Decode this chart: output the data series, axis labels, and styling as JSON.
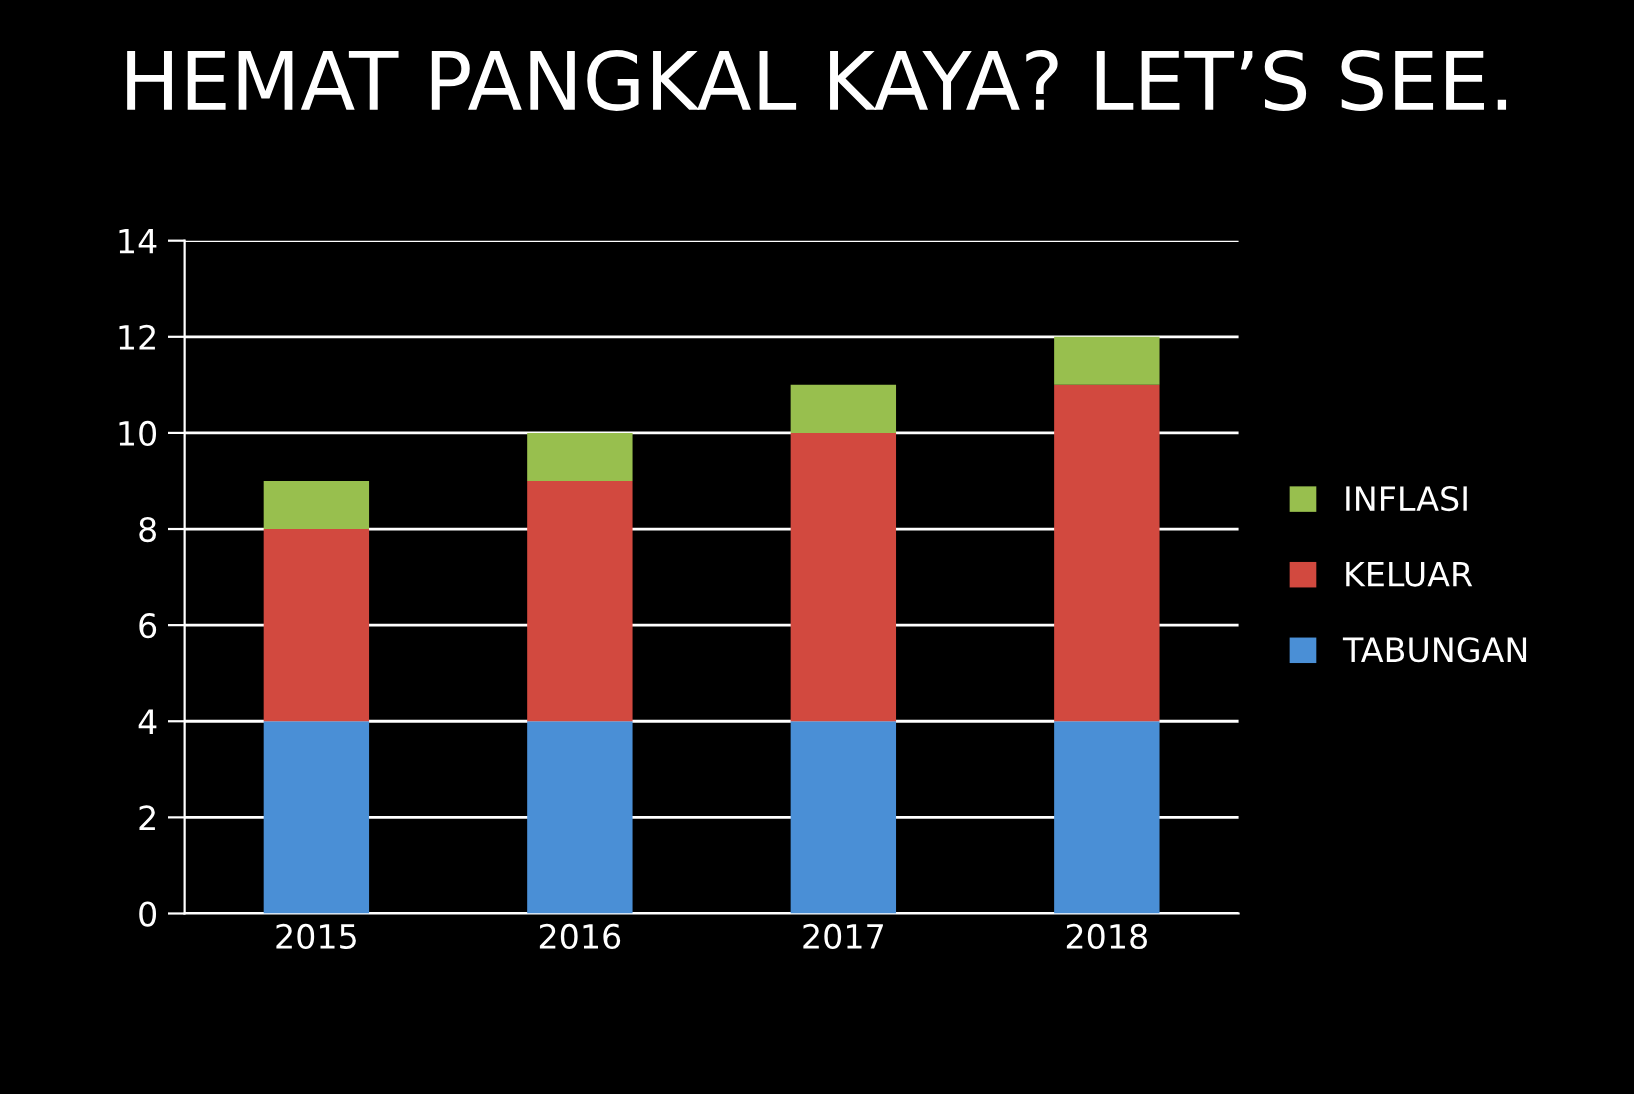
{
  "chart_data": {
    "type": "bar",
    "title": "HEMAT PANGKAL KAYA? LET’S SEE.",
    "stacked": true,
    "categories": [
      "2015",
      "2016",
      "2017",
      "2018"
    ],
    "series": [
      {
        "name": "TABUNGAN",
        "color": "#4a8fd6",
        "values": [
          4,
          4,
          4,
          4
        ]
      },
      {
        "name": "KELUAR",
        "color": "#d2493f",
        "values": [
          4,
          5,
          6,
          7
        ]
      },
      {
        "name": "INFLASI",
        "color": "#98bf4e",
        "values": [
          1,
          1,
          1,
          1
        ]
      }
    ],
    "ylim": [
      0,
      14
    ],
    "yticks": [
      0,
      2,
      4,
      6,
      8,
      10,
      12,
      14
    ],
    "grid": "y",
    "legend": "right"
  }
}
